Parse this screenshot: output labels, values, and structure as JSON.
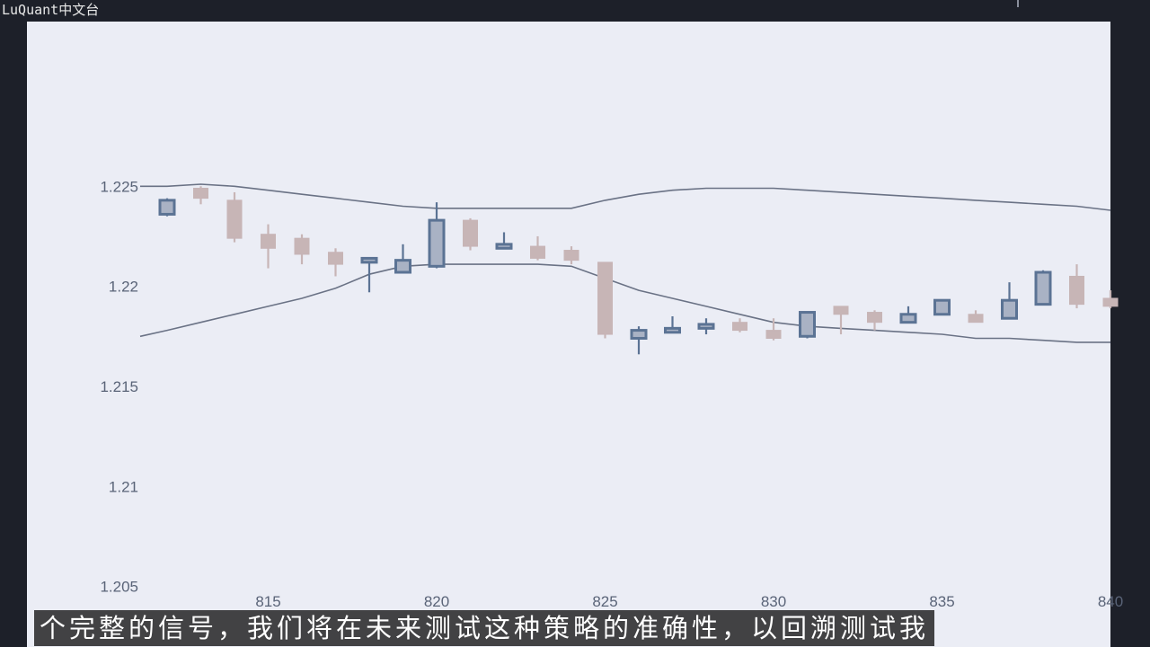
{
  "watermark": "LuQuant中文台",
  "subtitle": "个完整的信号，我们将在未来测试这种策略的准确性，以回溯测试我",
  "colors": {
    "background": "#1d2029",
    "plot_bg": "#ebedf5",
    "up_fill": "#a9b2c4",
    "up_line": "#5b7394",
    "down_fill": "#c7b5b6",
    "down_line": "#c7b5b6",
    "band_line": "#6a7285"
  },
  "chart_data": {
    "type": "candlestick",
    "x_ticks": [
      815,
      820,
      825,
      830,
      835,
      840
    ],
    "x_tick_labels": [
      "815",
      "820",
      "825",
      "830",
      "835",
      "840"
    ],
    "y_ticks": [
      1.205,
      1.21,
      1.215,
      1.22,
      1.225
    ],
    "y_tick_labels": [
      "1.205",
      "1.21",
      "1.215",
      "1.22",
      "1.225"
    ],
    "xlim": [
      811.2,
      840.0
    ],
    "ylim": [
      1.2035,
      1.2335
    ],
    "grid": false,
    "candles": [
      {
        "x": 812,
        "open": 1.2236,
        "high": 1.2244,
        "low": 1.2235,
        "close": 1.2243
      },
      {
        "x": 813,
        "open": 1.2249,
        "high": 1.225,
        "low": 1.2241,
        "close": 1.2244
      },
      {
        "x": 814,
        "open": 1.2243,
        "high": 1.2247,
        "low": 1.2222,
        "close": 1.2224
      },
      {
        "x": 815,
        "open": 1.2226,
        "high": 1.2231,
        "low": 1.2209,
        "close": 1.2219
      },
      {
        "x": 816,
        "open": 1.2224,
        "high": 1.2226,
        "low": 1.2211,
        "close": 1.2216
      },
      {
        "x": 817,
        "open": 1.2217,
        "high": 1.2219,
        "low": 1.2205,
        "close": 1.2211
      },
      {
        "x": 818,
        "open": 1.2212,
        "high": 1.2214,
        "low": 1.2197,
        "close": 1.2214
      },
      {
        "x": 819,
        "open": 1.2207,
        "high": 1.2221,
        "low": 1.2207,
        "close": 1.2213
      },
      {
        "x": 820,
        "open": 1.221,
        "high": 1.2242,
        "low": 1.2209,
        "close": 1.2233
      },
      {
        "x": 821,
        "open": 1.2233,
        "high": 1.2234,
        "low": 1.2218,
        "close": 1.222
      },
      {
        "x": 822,
        "open": 1.2219,
        "high": 1.2227,
        "low": 1.2219,
        "close": 1.2221
      },
      {
        "x": 823,
        "open": 1.222,
        "high": 1.2225,
        "low": 1.2213,
        "close": 1.2214
      },
      {
        "x": 824,
        "open": 1.2218,
        "high": 1.222,
        "low": 1.2211,
        "close": 1.2213
      },
      {
        "x": 825,
        "open": 1.2212,
        "high": 1.2212,
        "low": 1.2174,
        "close": 1.2176
      },
      {
        "x": 826,
        "open": 1.2174,
        "high": 1.218,
        "low": 1.2166,
        "close": 1.2178
      },
      {
        "x": 827,
        "open": 1.2177,
        "high": 1.2185,
        "low": 1.2177,
        "close": 1.2179
      },
      {
        "x": 828,
        "open": 1.2179,
        "high": 1.2184,
        "low": 1.2176,
        "close": 1.2181
      },
      {
        "x": 829,
        "open": 1.2182,
        "high": 1.2184,
        "low": 1.2177,
        "close": 1.2178
      },
      {
        "x": 830,
        "open": 1.2178,
        "high": 1.2184,
        "low": 1.2173,
        "close": 1.2174
      },
      {
        "x": 831,
        "open": 1.2175,
        "high": 1.2187,
        "low": 1.2174,
        "close": 1.2187
      },
      {
        "x": 832,
        "open": 1.219,
        "high": 1.219,
        "low": 1.2176,
        "close": 1.2186
      },
      {
        "x": 833,
        "open": 1.2187,
        "high": 1.2188,
        "low": 1.2178,
        "close": 1.2182
      },
      {
        "x": 834,
        "open": 1.2182,
        "high": 1.219,
        "low": 1.2182,
        "close": 1.2186
      },
      {
        "x": 835,
        "open": 1.2186,
        "high": 1.2193,
        "low": 1.2186,
        "close": 1.2193
      },
      {
        "x": 836,
        "open": 1.2186,
        "high": 1.2188,
        "low": 1.2182,
        "close": 1.2182
      },
      {
        "x": 837,
        "open": 1.2184,
        "high": 1.2202,
        "low": 1.2184,
        "close": 1.2193
      },
      {
        "x": 838,
        "open": 1.2191,
        "high": 1.2208,
        "low": 1.2191,
        "close": 1.2207
      },
      {
        "x": 839,
        "open": 1.2205,
        "high": 1.2211,
        "low": 1.2189,
        "close": 1.2191
      },
      {
        "x": 840,
        "open": 1.2194,
        "high": 1.2198,
        "low": 1.2189,
        "close": 1.219
      }
    ],
    "series": [
      {
        "x": [
          811.2,
          812,
          813,
          814,
          815,
          816,
          817,
          818,
          819,
          820,
          821,
          822,
          823,
          824,
          825,
          826,
          827,
          828,
          829,
          830,
          831,
          832,
          833,
          834,
          835,
          836,
          837,
          838,
          839,
          840
        ],
        "values": [
          1.225,
          1.225,
          1.2251,
          1.225,
          1.2248,
          1.2246,
          1.2244,
          1.2242,
          1.224,
          1.2239,
          1.2239,
          1.2239,
          1.2239,
          1.2239,
          1.2243,
          1.2246,
          1.2248,
          1.2249,
          1.2249,
          1.2249,
          1.2248,
          1.2247,
          1.2246,
          1.2245,
          1.2244,
          1.2243,
          1.2242,
          1.2241,
          1.224,
          1.2238
        ]
      },
      {
        "x": [
          811.2,
          812,
          813,
          814,
          815,
          816,
          817,
          818,
          819,
          820,
          821,
          822,
          823,
          824,
          825,
          826,
          827,
          828,
          829,
          830,
          831,
          832,
          833,
          834,
          835,
          836,
          837,
          838,
          839,
          840
        ],
        "values": [
          1.2175,
          1.2178,
          1.2182,
          1.2186,
          1.219,
          1.2194,
          1.2199,
          1.2206,
          1.221,
          1.2211,
          1.2211,
          1.2211,
          1.2211,
          1.221,
          1.2204,
          1.2198,
          1.2194,
          1.219,
          1.2186,
          1.2182,
          1.218,
          1.2179,
          1.2178,
          1.2177,
          1.2176,
          1.2174,
          1.2174,
          1.2173,
          1.2172,
          1.2172
        ]
      }
    ]
  }
}
